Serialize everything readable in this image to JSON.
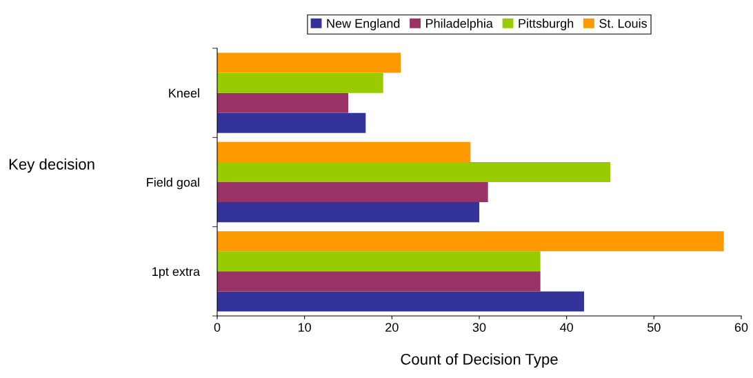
{
  "chart_data": {
    "type": "bar",
    "orientation": "horizontal",
    "categories": [
      "Kneel",
      "Field goal",
      "1pt extra"
    ],
    "series": [
      {
        "name": "New England",
        "color": "#333399",
        "values": [
          17,
          30,
          42
        ]
      },
      {
        "name": "Philadelphia",
        "color": "#993366",
        "values": [
          15,
          31,
          37
        ]
      },
      {
        "name": "Pittsburgh",
        "color": "#99cc00",
        "values": [
          19,
          45,
          37
        ]
      },
      {
        "name": "St. Louis",
        "color": "#ff9900",
        "values": [
          21,
          29,
          58
        ]
      }
    ],
    "xlim": [
      0,
      60
    ],
    "xticks": [
      0,
      10,
      20,
      30,
      40,
      50,
      60
    ],
    "xlabel": "Count of Decision Type",
    "ylabel": "Key decision",
    "legend": "top",
    "grid": false
  }
}
